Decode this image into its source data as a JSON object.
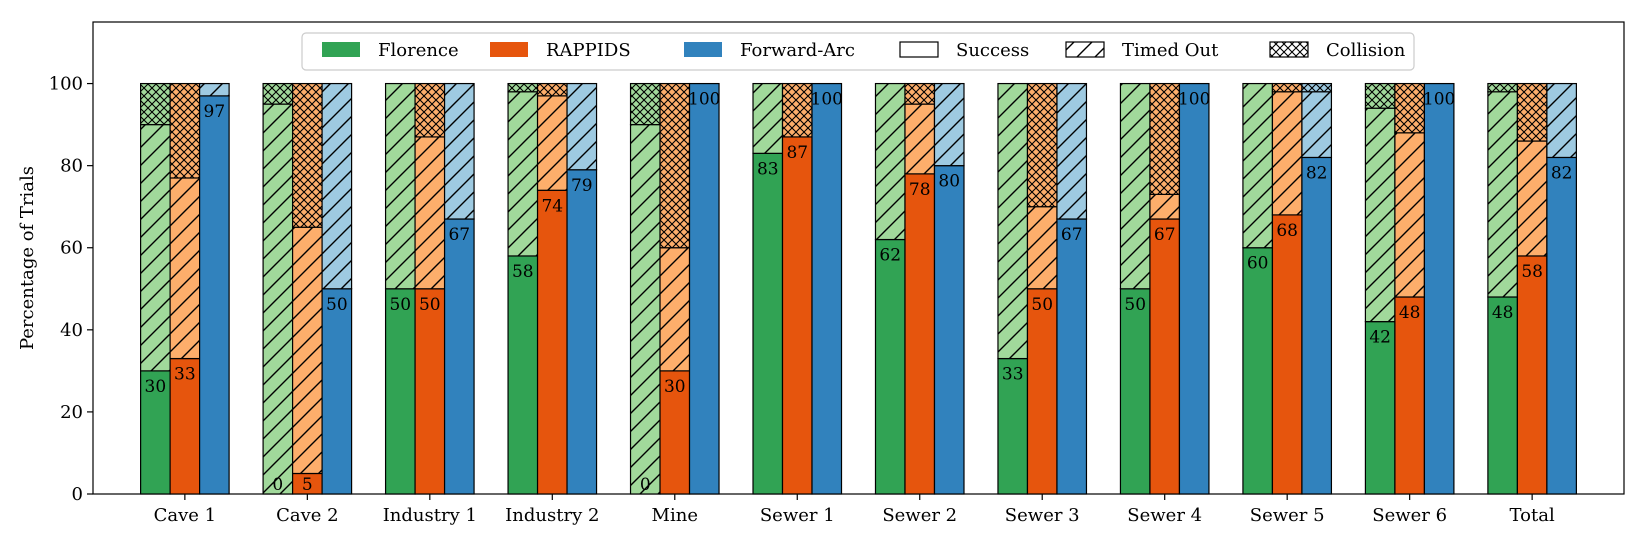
{
  "chart_data": {
    "type": "bar",
    "subtype": "grouped-stacked",
    "title": "",
    "xlabel": "",
    "ylabel": "Percentage of Trials",
    "ylim": [
      0,
      115
    ],
    "yticks": [
      0,
      20,
      40,
      60,
      80,
      100
    ],
    "legend_position": "top-center",
    "categories": [
      "Cave 1",
      "Cave 2",
      "Industry 1",
      "Industry 2",
      "Mine",
      "Sewer 1",
      "Sewer 2",
      "Sewer 3",
      "Sewer 4",
      "Sewer 5",
      "Sewer 6",
      "Total"
    ],
    "outcomes": [
      "Success",
      "Timed Out",
      "Collision"
    ],
    "series": [
      {
        "name": "Florence",
        "color": "#31a354",
        "light_color": "#a1d99b",
        "success": [
          30,
          0,
          50,
          58,
          0,
          83,
          62,
          33,
          50,
          60,
          42,
          48
        ],
        "timed_out": [
          60,
          95,
          50,
          40,
          90,
          17,
          38,
          67,
          50,
          40,
          52,
          50
        ],
        "collision": [
          10,
          5,
          0,
          2,
          10,
          0,
          0,
          0,
          0,
          0,
          6,
          2
        ],
        "labels": [
          "30",
          "0",
          "50",
          "58",
          "0",
          "83",
          "62",
          "33",
          "50",
          "60",
          "42",
          "48"
        ]
      },
      {
        "name": "RAPPIDS",
        "color": "#e6550d",
        "light_color": "#fdae6b",
        "success": [
          33,
          5,
          50,
          74,
          30,
          87,
          78,
          50,
          67,
          68,
          48,
          58
        ],
        "timed_out": [
          44,
          60,
          37,
          23,
          30,
          0,
          17,
          20,
          6,
          30,
          40,
          28
        ],
        "collision": [
          23,
          35,
          13,
          3,
          40,
          13,
          5,
          30,
          27,
          2,
          12,
          14
        ],
        "labels": [
          "33",
          "5",
          "50",
          "74",
          "30",
          "87",
          "78",
          "50",
          "67",
          "68",
          "48",
          "58"
        ]
      },
      {
        "name": "Forward-Arc",
        "color": "#3182bd",
        "light_color": "#9ecae1",
        "success": [
          97,
          50,
          67,
          79,
          100,
          100,
          80,
          67,
          100,
          82,
          100,
          82
        ],
        "timed_out": [
          3,
          50,
          33,
          21,
          0,
          0,
          20,
          33,
          0,
          16,
          0,
          18
        ],
        "collision": [
          0,
          0,
          0,
          0,
          0,
          0,
          0,
          0,
          0,
          2,
          0,
          0
        ],
        "labels": [
          "97",
          "50",
          "67",
          "79",
          "100",
          "100",
          "80",
          "67",
          "100",
          "82",
          "100",
          "82"
        ]
      }
    ]
  }
}
